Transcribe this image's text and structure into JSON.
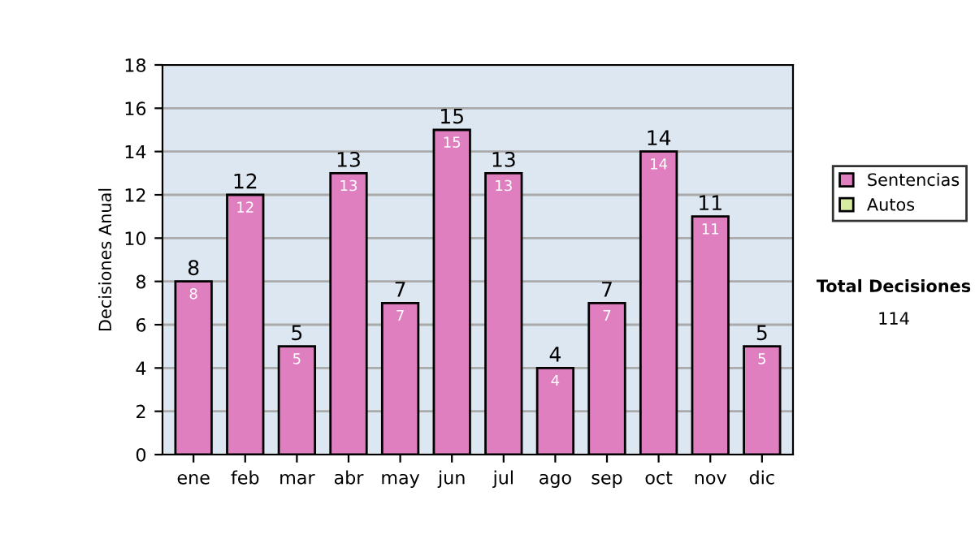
{
  "chart_data": {
    "type": "bar",
    "stacked": true,
    "ylabel": "Decisiones Anual",
    "categories": [
      "ene",
      "feb",
      "mar",
      "abr",
      "may",
      "jun",
      "jul",
      "ago",
      "sep",
      "oct",
      "nov",
      "dic"
    ],
    "series": [
      {
        "name": "Sentencias",
        "color": "#df7fc0",
        "values": [
          8,
          12,
          5,
          13,
          7,
          15,
          13,
          4,
          7,
          14,
          11,
          5
        ]
      },
      {
        "name": "Autos",
        "color": "#d8eca0",
        "values": [
          null,
          null,
          null,
          null,
          null,
          null,
          null,
          null,
          null,
          null,
          null,
          null
        ]
      }
    ],
    "data_labels": true,
    "totals": [
      "8",
      "12",
      "5",
      "13",
      "7",
      "15",
      "13",
      "4",
      "7",
      "14",
      "11",
      "5"
    ],
    "ylim": [
      0,
      18
    ],
    "yticks": [
      0,
      2,
      4,
      6,
      8,
      10,
      12,
      14,
      16,
      18
    ],
    "grid": "y",
    "legend": "right",
    "annotations": [
      "Total Decisiones",
      "114"
    ]
  }
}
